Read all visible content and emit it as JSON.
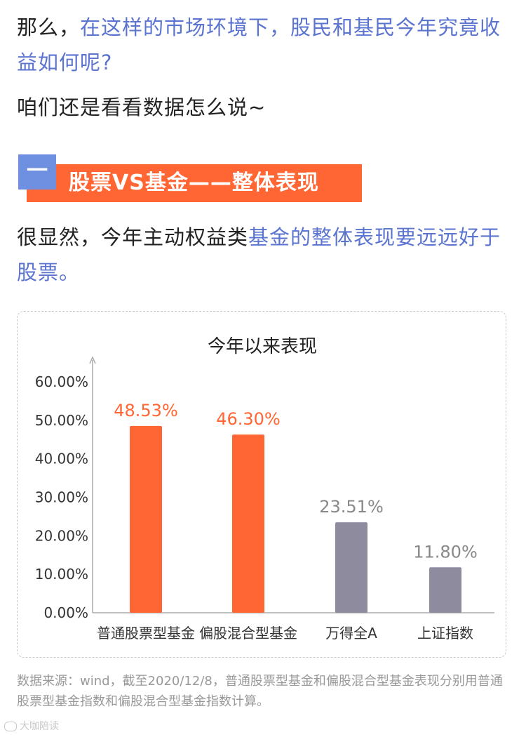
{
  "intro": {
    "line1_plain": "那么，",
    "line1_highlight": "在这样的市场环境下，股民和基民今年究竟收益如何呢?",
    "line2": "咱们还是看看数据怎么说~"
  },
  "section": {
    "number": "一",
    "title": "股票VS基金——整体表现"
  },
  "summary": {
    "plain": "很显然，今年主动权益类",
    "highlight": "基金的整体表现要远远好于股票。"
  },
  "chart_data": {
    "type": "bar",
    "title": "今年以来表现",
    "categories": [
      "普通股票型基金",
      "偏股混合型基金",
      "万得全A",
      "上证指数"
    ],
    "values": [
      48.53,
      46.3,
      23.51,
      11.8
    ],
    "value_labels": [
      "48.53%",
      "46.30%",
      "23.51%",
      "11.80%"
    ],
    "ylim": [
      0,
      60
    ],
    "yticks": [
      "0.00%",
      "10.00%",
      "20.00%",
      "30.00%",
      "40.00%",
      "50.00%",
      "60.00%"
    ],
    "grid": false,
    "colors": {
      "fund_bar": "#ff6633",
      "index_bar": "#8e8b9f",
      "fund_label": "#ff6633",
      "index_label": "#888888",
      "axis": "#aaaaaa"
    },
    "bar_colors": [
      "#ff6633",
      "#ff6633",
      "#8e8b9f",
      "#8e8b9f"
    ],
    "label_colors": [
      "#ff6633",
      "#ff6633",
      "#888888",
      "#888888"
    ]
  },
  "source_note": "数据来源：wind，截至2020/12/8，普通股票型基金和偏股混合型基金表现分别用普通股票型基金指数和偏股混合型基金指数计算。",
  "watermark": "大咖陪读"
}
